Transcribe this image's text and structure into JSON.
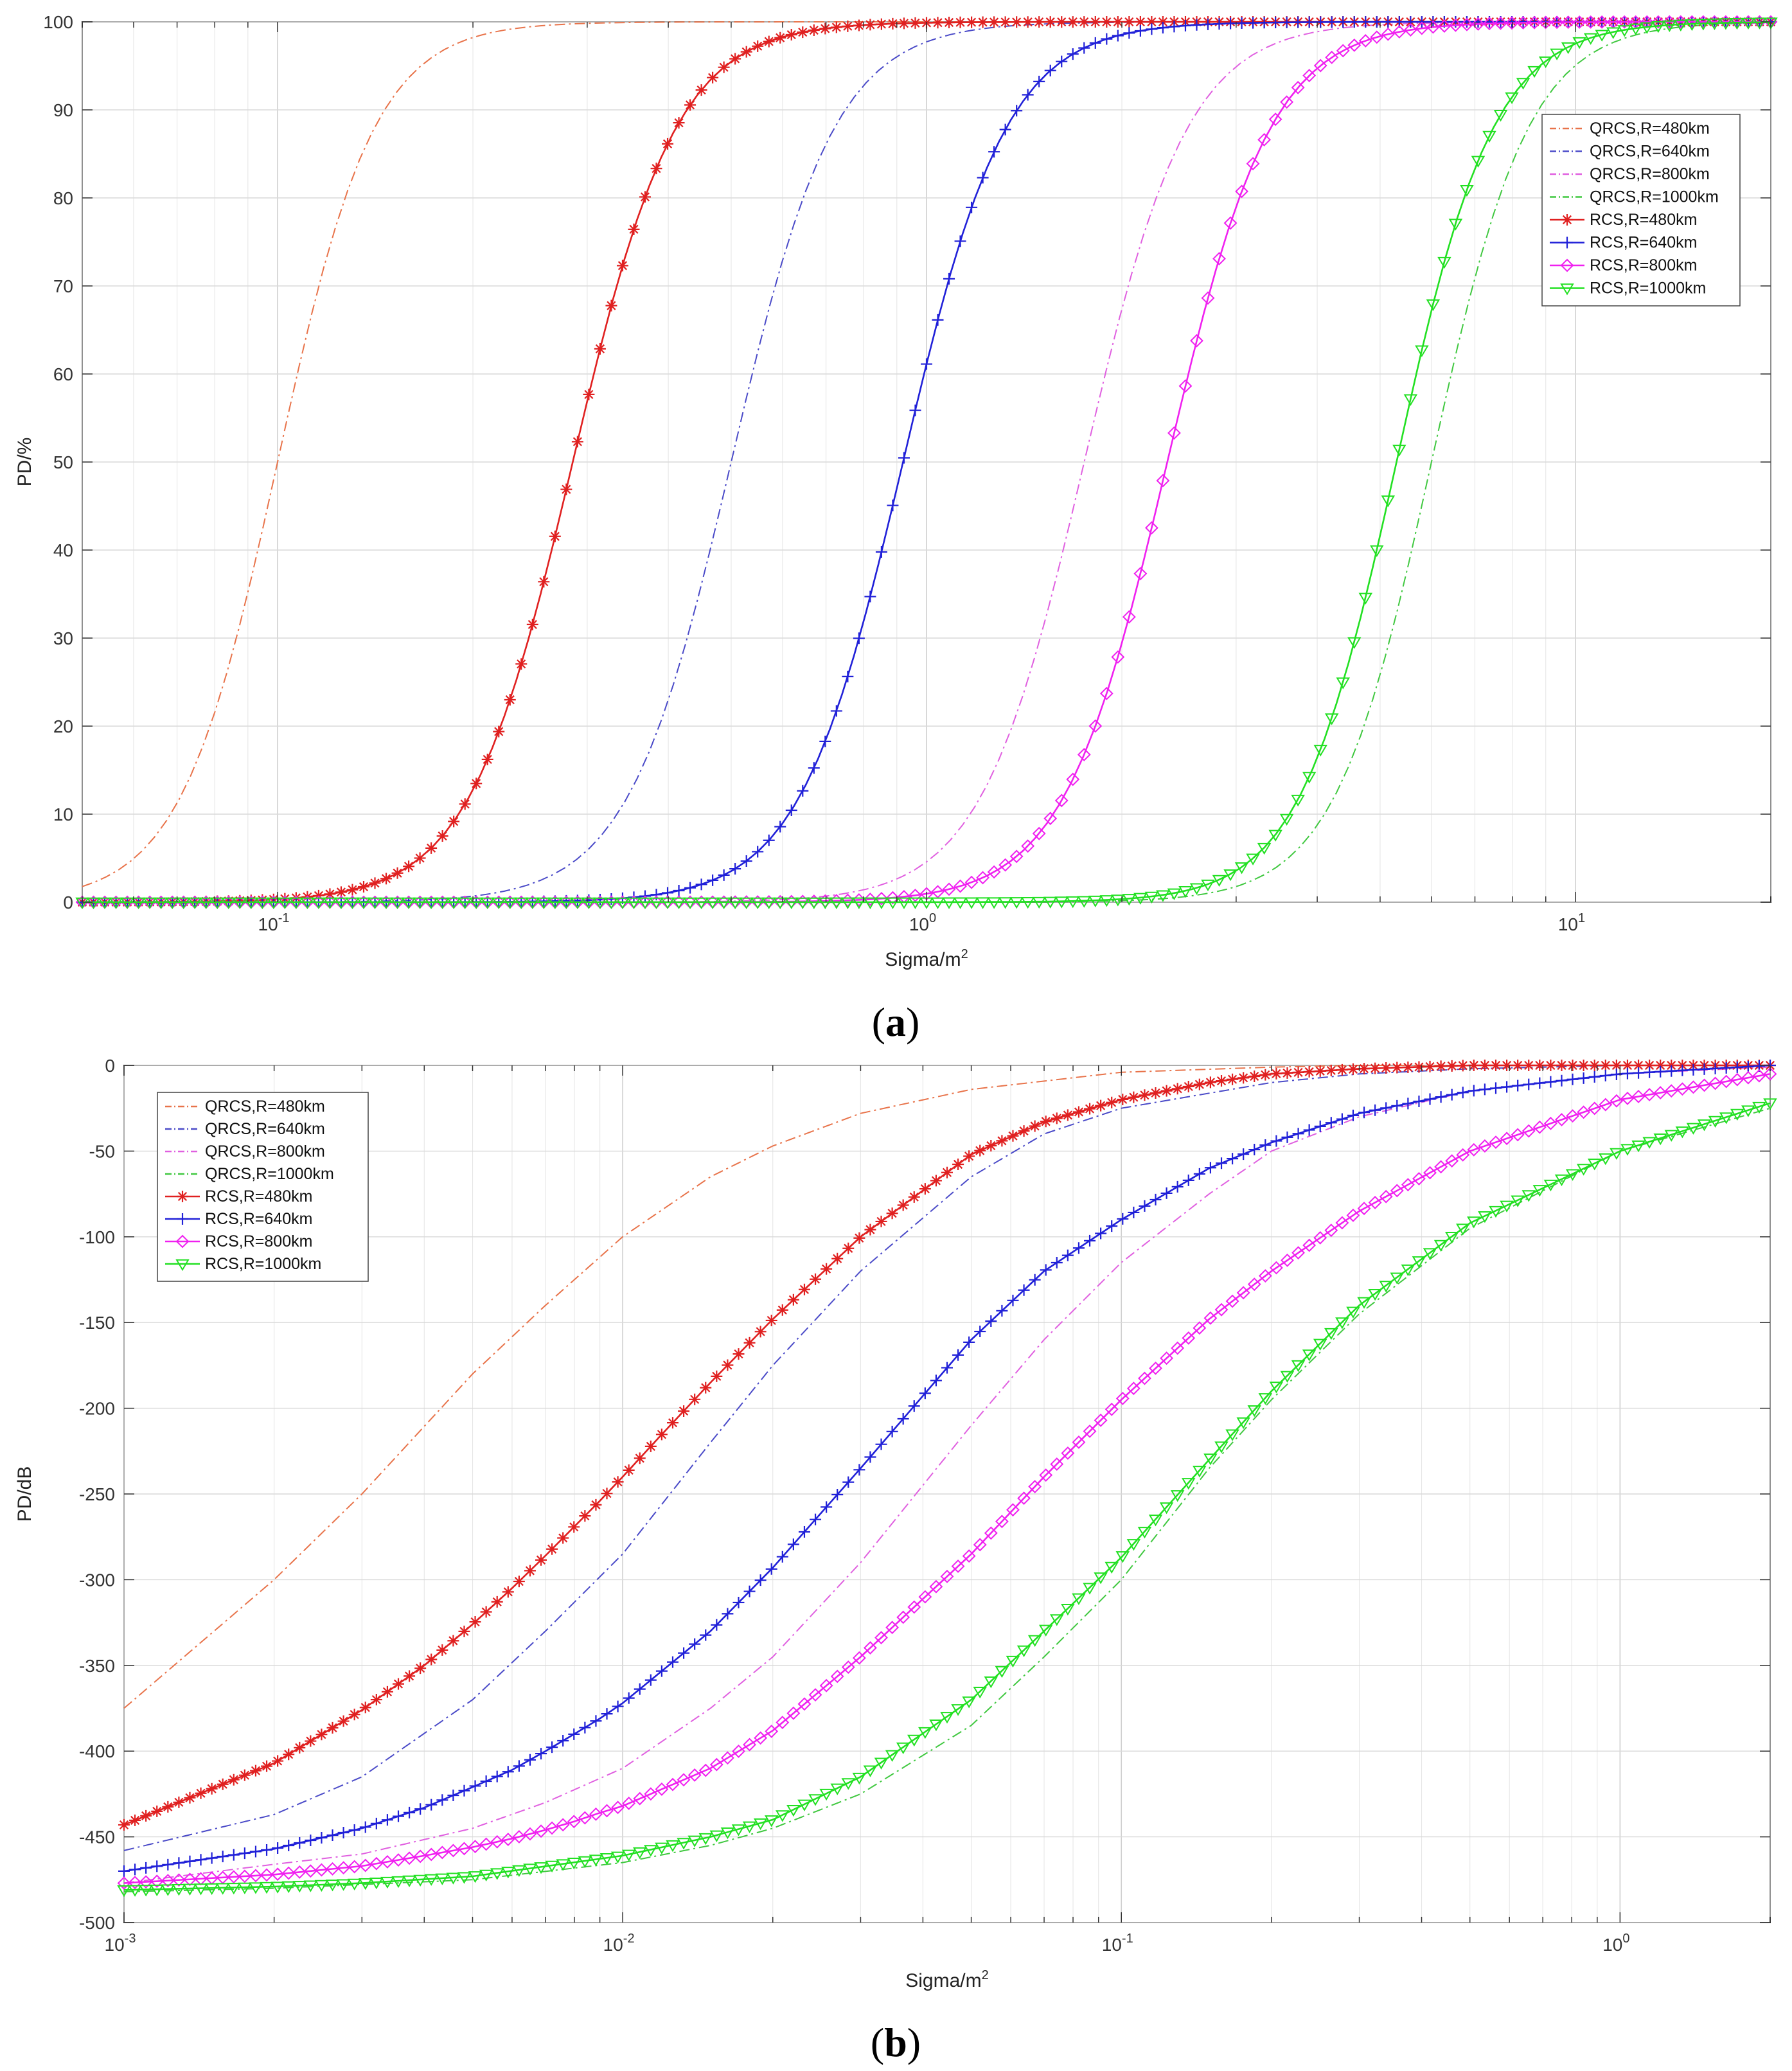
{
  "chart_data": [
    {
      "id": "a",
      "type": "line",
      "caption_letter": "a",
      "xlabel": "Sigma/m",
      "xlabel_sup": "2",
      "ylabel": "PD/%",
      "xscale": "log",
      "xlim": [
        0.05,
        20
      ],
      "ylim": [
        0,
        100
      ],
      "yticks": [
        0,
        10,
        20,
        30,
        40,
        50,
        60,
        70,
        80,
        90,
        100
      ],
      "xticks": [
        {
          "value": 0.1,
          "base": "10",
          "exp": "-1"
        },
        {
          "value": 1,
          "base": "10",
          "exp": "0"
        },
        {
          "value": 10,
          "base": "10",
          "exp": "1"
        }
      ],
      "grid": true,
      "legend_position": "top-right",
      "series": [
        {
          "name": "QRCS,R=480km",
          "color": "#e8734a",
          "style": "dashdot",
          "marker": "none",
          "model": {
            "mid": 0.1,
            "w": 0.075
          }
        },
        {
          "name": "QRCS,R=640km",
          "color": "#4a4ac8",
          "style": "dashdot",
          "marker": "none",
          "model": {
            "mid": 0.5,
            "w": 0.08
          }
        },
        {
          "name": "QRCS,R=800km",
          "color": "#e060e0",
          "style": "dashdot",
          "marker": "none",
          "model": {
            "mid": 1.75,
            "w": 0.08
          }
        },
        {
          "name": "QRCS,R=1000km",
          "color": "#40c840",
          "style": "dashdot",
          "marker": "none",
          "model": {
            "mid": 6.0,
            "w": 0.075
          }
        },
        {
          "name": "RCS,R=480km",
          "color": "#e02020",
          "style": "solid",
          "marker": "asterisk",
          "model": {
            "mid": 0.285,
            "w": 0.08
          }
        },
        {
          "name": "RCS,R=640km",
          "color": "#2020d8",
          "style": "solid",
          "marker": "plus",
          "model": {
            "mid": 0.92,
            "w": 0.08
          }
        },
        {
          "name": "RCS,R=800km",
          "color": "#f020f0",
          "style": "solid",
          "marker": "diamond",
          "model": {
            "mid": 2.35,
            "w": 0.08
          }
        },
        {
          "name": "RCS,R=1000km",
          "color": "#22e022",
          "style": "solid",
          "marker": "triangle",
          "model": {
            "mid": 5.3,
            "w": 0.075
          }
        }
      ]
    },
    {
      "id": "b",
      "type": "line",
      "caption_letter": "b",
      "xlabel": "Sigma/m",
      "xlabel_sup": "2",
      "ylabel": "PD/dB",
      "xscale": "log",
      "xlim": [
        0.001,
        2
      ],
      "ylim": [
        -500,
        0
      ],
      "yticks": [
        -500,
        -450,
        -400,
        -350,
        -300,
        -250,
        -200,
        -150,
        -100,
        -50,
        0
      ],
      "xticks": [
        {
          "value": 0.001,
          "base": "10",
          "exp": "-3"
        },
        {
          "value": 0.01,
          "base": "10",
          "exp": "-2"
        },
        {
          "value": 0.1,
          "base": "10",
          "exp": "-1"
        },
        {
          "value": 1,
          "base": "10",
          "exp": "0"
        }
      ],
      "grid": true,
      "legend_position": "top-left",
      "series": [
        {
          "name": "QRCS,R=480km",
          "color": "#e8734a",
          "style": "dashdot",
          "marker": "none",
          "x": [
            0.001,
            0.002,
            0.003,
            0.005,
            0.007,
            0.01,
            0.015,
            0.02,
            0.03,
            0.05,
            0.1,
            0.2,
            0.3,
            0.5,
            1,
            2
          ],
          "y": [
            -375,
            -300,
            -250,
            -180,
            -140,
            -100,
            -65,
            -47,
            -28,
            -14,
            -4,
            -1,
            0,
            0,
            0,
            0
          ]
        },
        {
          "name": "QRCS,R=640km",
          "color": "#4a4ac8",
          "style": "dashdot",
          "marker": "none",
          "x": [
            0.001,
            0.002,
            0.003,
            0.005,
            0.007,
            0.01,
            0.015,
            0.02,
            0.03,
            0.05,
            0.07,
            0.1,
            0.2,
            0.3,
            0.5,
            1,
            2
          ],
          "y": [
            -458,
            -437,
            -415,
            -370,
            -330,
            -285,
            -220,
            -175,
            -120,
            -65,
            -40,
            -25,
            -10,
            -5,
            -2,
            0,
            0
          ]
        },
        {
          "name": "QRCS,R=800km",
          "color": "#e060e0",
          "style": "dashdot",
          "marker": "none",
          "x": [
            0.001,
            0.002,
            0.003,
            0.005,
            0.007,
            0.01,
            0.015,
            0.02,
            0.03,
            0.05,
            0.07,
            0.1,
            0.15,
            0.2,
            0.3,
            0.5,
            1,
            2
          ],
          "y": [
            -477,
            -466,
            -460,
            -445,
            -430,
            -410,
            -375,
            -345,
            -290,
            -210,
            -160,
            -115,
            -75,
            -50,
            -30,
            -15,
            -5,
            -1
          ]
        },
        {
          "name": "QRCS,R=1000km",
          "color": "#40c840",
          "style": "dashdot",
          "marker": "none",
          "x": [
            0.001,
            0.002,
            0.005,
            0.01,
            0.015,
            0.02,
            0.03,
            0.05,
            0.07,
            0.1,
            0.15,
            0.2,
            0.3,
            0.5,
            1,
            2
          ],
          "y": [
            -482,
            -480,
            -475,
            -465,
            -455,
            -445,
            -425,
            -385,
            -345,
            -300,
            -235,
            -195,
            -145,
            -95,
            -50,
            -25
          ]
        },
        {
          "name": "RCS,R=480km",
          "color": "#e02020",
          "style": "solid",
          "marker": "asterisk",
          "x": [
            0.001,
            0.002,
            0.003,
            0.004,
            0.005,
            0.006,
            0.007,
            0.008,
            0.009,
            0.01,
            0.012,
            0.015,
            0.02,
            0.03,
            0.05,
            0.07,
            0.1,
            0.15,
            0.2,
            0.3,
            0.5,
            1,
            2
          ],
          "y": [
            -443,
            -407,
            -376,
            -350,
            -326,
            -305,
            -286,
            -269,
            -254,
            -240,
            -215,
            -185,
            -148,
            -100,
            -52,
            -33,
            -20,
            -10,
            -5,
            -2,
            0,
            0,
            0
          ]
        },
        {
          "name": "RCS,R=640km",
          "color": "#2020d8",
          "style": "solid",
          "marker": "plus",
          "x": [
            0.001,
            0.002,
            0.003,
            0.004,
            0.005,
            0.006,
            0.007,
            0.008,
            0.009,
            0.01,
            0.015,
            0.02,
            0.03,
            0.05,
            0.07,
            0.1,
            0.15,
            0.2,
            0.3,
            0.5,
            1,
            2
          ],
          "y": [
            -470,
            -457,
            -445,
            -433,
            -421,
            -411,
            -400,
            -390,
            -381,
            -372,
            -330,
            -293,
            -235,
            -160,
            -120,
            -90,
            -60,
            -45,
            -28,
            -15,
            -5,
            0
          ]
        },
        {
          "name": "RCS,R=800km",
          "color": "#f020f0",
          "style": "solid",
          "marker": "diamond",
          "x": [
            0.001,
            0.002,
            0.003,
            0.004,
            0.005,
            0.006,
            0.007,
            0.008,
            0.009,
            0.01,
            0.015,
            0.02,
            0.03,
            0.05,
            0.07,
            0.1,
            0.15,
            0.2,
            0.3,
            0.5,
            1,
            2
          ],
          "y": [
            -477,
            -472,
            -467,
            -461,
            -456,
            -451,
            -446,
            -441,
            -436,
            -432,
            -410,
            -388,
            -345,
            -285,
            -240,
            -195,
            -148,
            -120,
            -85,
            -50,
            -20,
            -5
          ]
        },
        {
          "name": "RCS,R=1000km",
          "color": "#22e022",
          "style": "solid",
          "marker": "triangle",
          "x": [
            0.001,
            0.002,
            0.003,
            0.005,
            0.01,
            0.015,
            0.02,
            0.03,
            0.05,
            0.07,
            0.1,
            0.15,
            0.2,
            0.3,
            0.5,
            1,
            2
          ],
          "y": [
            -481,
            -479,
            -477,
            -473,
            -461,
            -450,
            -440,
            -415,
            -370,
            -330,
            -287,
            -230,
            -190,
            -140,
            -92,
            -50,
            -22
          ]
        }
      ]
    }
  ]
}
